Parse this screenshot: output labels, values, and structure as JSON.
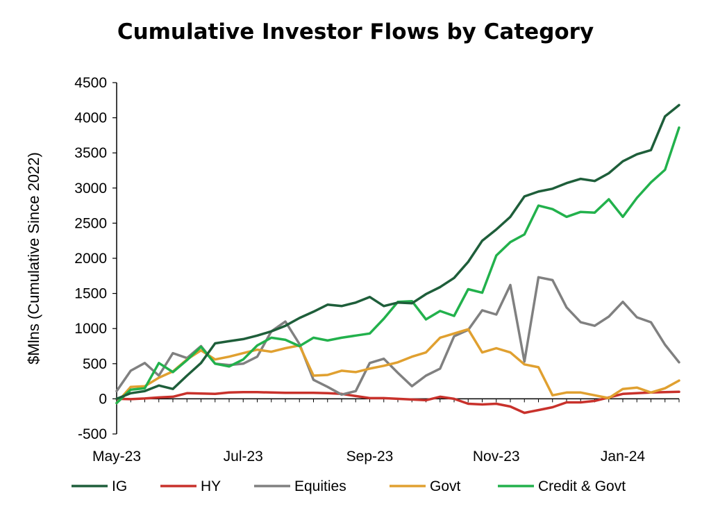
{
  "chart_data": {
    "type": "line",
    "title": "Cumulative Investor Flows by Category",
    "xlabel": "",
    "ylabel": "$Mlns (Cumulative Since 2022)",
    "ylim": [
      -500,
      4500
    ],
    "yticks": [
      -500,
      0,
      500,
      1000,
      1500,
      2000,
      2500,
      3000,
      3500,
      4000,
      4500
    ],
    "x_tick_labels": [
      "May-23",
      "Jul-23",
      "Sep-23",
      "Nov-23",
      "Jan-24"
    ],
    "x_tick_index": [
      0,
      9,
      18,
      27,
      36
    ],
    "grid": false,
    "legend_position": "bottom",
    "series": [
      {
        "name": "IG",
        "color": "#1e5e3a",
        "values": [
          0,
          80,
          110,
          190,
          140,
          330,
          510,
          790,
          820,
          850,
          900,
          960,
          1040,
          1150,
          1240,
          1340,
          1320,
          1370,
          1450,
          1320,
          1370,
          1360,
          1490,
          1590,
          1720,
          1950,
          2250,
          2410,
          2590,
          2880,
          2950,
          2990,
          3070,
          3130,
          3100,
          3210,
          3380,
          3480,
          3540,
          4020,
          4180
        ]
      },
      {
        "name": "HY",
        "color": "#c8312b",
        "values": [
          0,
          -5,
          5,
          20,
          30,
          80,
          75,
          70,
          90,
          95,
          95,
          90,
          85,
          85,
          85,
          80,
          70,
          40,
          10,
          10,
          0,
          -10,
          -20,
          30,
          0,
          -70,
          -80,
          -70,
          -110,
          -200,
          -160,
          -120,
          -50,
          -50,
          -30,
          20,
          70,
          80,
          90,
          95,
          100
        ]
      },
      {
        "name": "Equities",
        "color": "#808080",
        "values": [
          110,
          400,
          510,
          330,
          650,
          580,
          750,
          500,
          480,
          500,
          600,
          960,
          1100,
          780,
          270,
          170,
          60,
          110,
          510,
          570,
          370,
          180,
          330,
          430,
          890,
          980,
          1260,
          1200,
          1620,
          530,
          1730,
          1690,
          1300,
          1090,
          1040,
          1170,
          1380,
          1160,
          1090,
          770,
          520
        ]
      },
      {
        "name": "Govt",
        "color": "#e0a030",
        "values": [
          -60,
          170,
          180,
          300,
          390,
          560,
          690,
          560,
          600,
          650,
          700,
          670,
          720,
          760,
          330,
          340,
          400,
          380,
          430,
          470,
          520,
          600,
          660,
          870,
          930,
          990,
          660,
          720,
          660,
          490,
          450,
          50,
          90,
          90,
          50,
          10,
          140,
          160,
          90,
          150,
          260
        ]
      },
      {
        "name": "Credit & Govt",
        "color": "#22b14c",
        "values": [
          -60,
          130,
          150,
          510,
          380,
          550,
          740,
          500,
          460,
          560,
          760,
          870,
          840,
          750,
          870,
          830,
          870,
          900,
          930,
          1140,
          1380,
          1390,
          1130,
          1250,
          1180,
          1560,
          1510,
          2040,
          2230,
          2340,
          2750,
          2700,
          2590,
          2660,
          2650,
          2840,
          2590,
          2860,
          3080,
          3260,
          3860
        ]
      }
    ]
  }
}
